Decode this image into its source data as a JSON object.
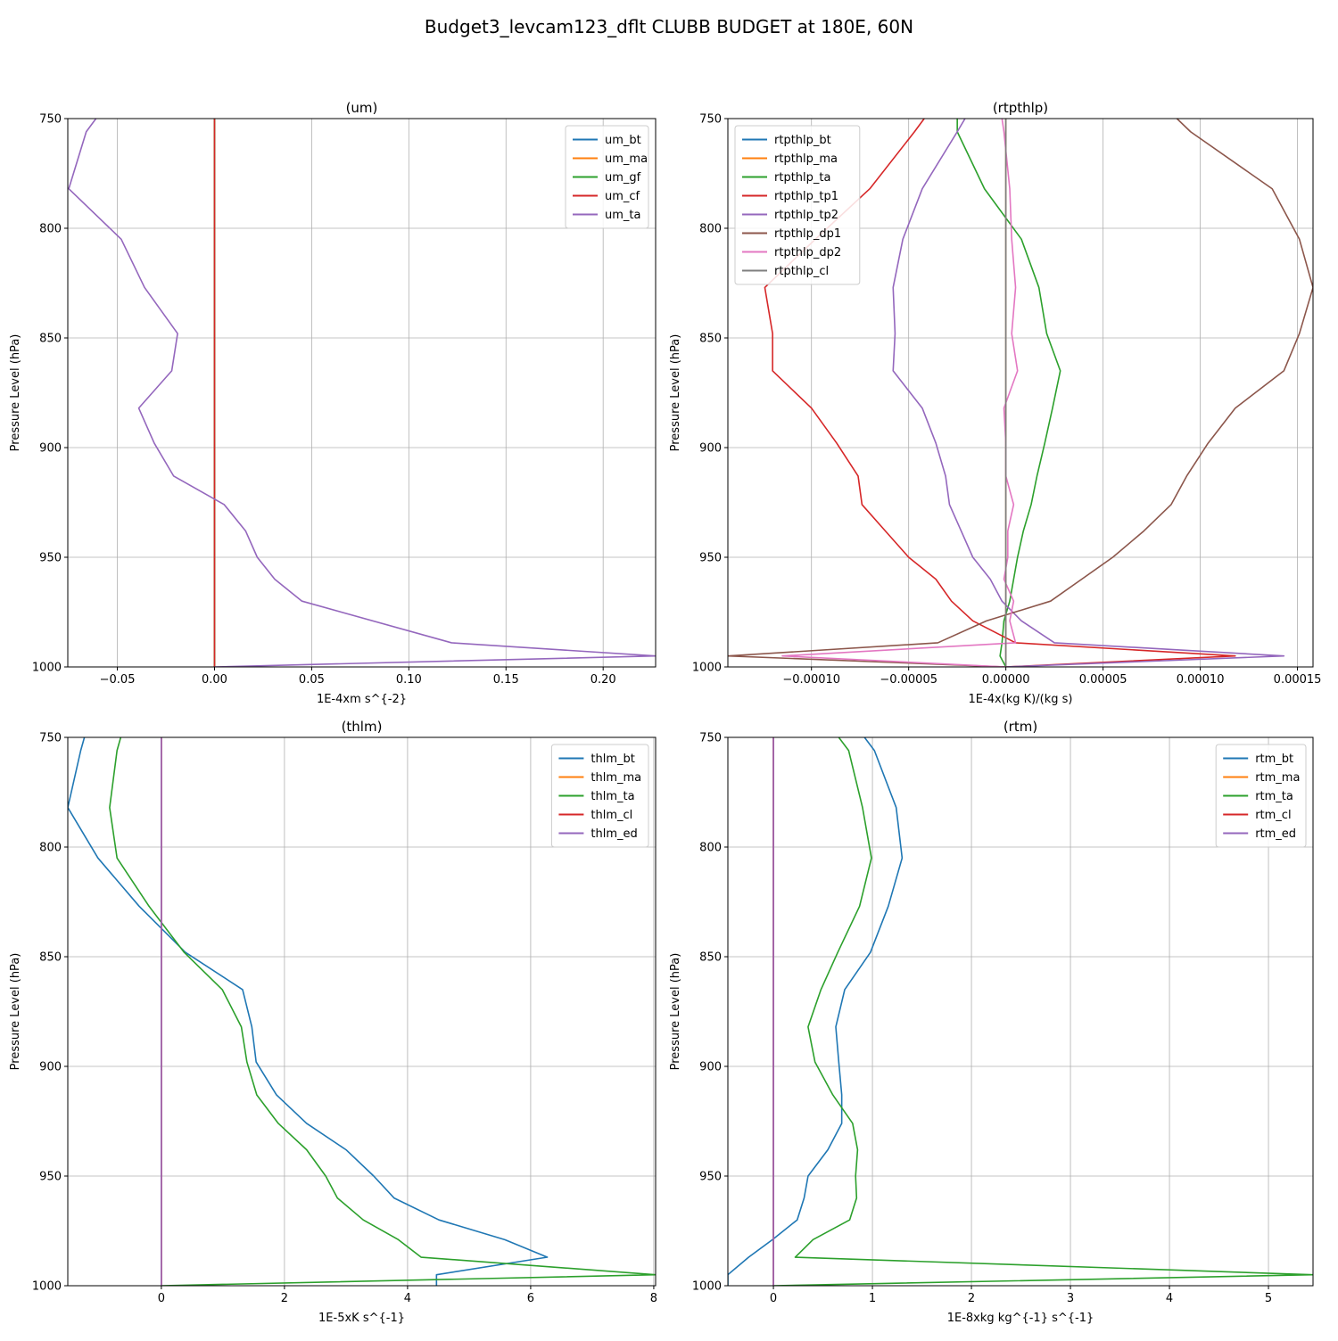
{
  "figure": {
    "title": "Budget3_levcam123_dflt CLUBB BUDGET at 180E, 60N"
  },
  "chart_data": [
    {
      "type": "line",
      "title": "(um)",
      "xlabel": "1E-4xm s^{-2}",
      "ylabel": "Pressure Level (hPa)",
      "xlim": [
        -0.0755,
        0.227
      ],
      "ylim": [
        1000,
        750
      ],
      "xticks": [
        {
          "value": -0.05,
          "label": "−0.05"
        },
        {
          "value": 0.0,
          "label": "0.00"
        },
        {
          "value": 0.05,
          "label": "0.05"
        },
        {
          "value": 0.1,
          "label": "0.10"
        },
        {
          "value": 0.15,
          "label": "0.15"
        },
        {
          "value": 0.2,
          "label": "0.20"
        }
      ],
      "yticks": [
        750,
        800,
        850,
        900,
        950,
        1000
      ],
      "grid": true,
      "legend_position": "top-right",
      "levels": [
        750,
        756,
        782,
        805,
        827,
        848,
        865,
        882,
        898,
        913,
        926,
        938,
        950,
        960,
        970,
        989,
        995,
        1000
      ],
      "series": [
        {
          "name": "um_bt",
          "color": "#1f77b4",
          "values": [
            0,
            0,
            0,
            0,
            0,
            0,
            0,
            0,
            0,
            0,
            0,
            0,
            0,
            0,
            0,
            0,
            0,
            0
          ]
        },
        {
          "name": "um_ma",
          "color": "#ff7f0e",
          "values": [
            0,
            0,
            0,
            0,
            0,
            0,
            0,
            0,
            0,
            0,
            0,
            0,
            0,
            0,
            0,
            0,
            0,
            0
          ]
        },
        {
          "name": "um_gf",
          "color": "#2ca02c",
          "values": [
            0,
            0,
            0,
            0,
            0,
            0,
            0,
            0,
            0,
            0,
            0,
            0,
            0,
            0,
            0,
            0,
            0,
            0
          ]
        },
        {
          "name": "um_cf",
          "color": "#d62728",
          "values": [
            0,
            0,
            0,
            0,
            0,
            0,
            0,
            0,
            0,
            0,
            0,
            0,
            0,
            0,
            0,
            0,
            0,
            0
          ]
        },
        {
          "name": "um_ta",
          "color": "#9467bd",
          "values": [
            -0.061,
            -0.066,
            -0.075,
            -0.048,
            -0.036,
            -0.019,
            -0.022,
            -0.039,
            -0.031,
            -0.021,
            0.005,
            0.016,
            0.022,
            0.031,
            0.045,
            0.122,
            0.227,
            0.0
          ]
        }
      ]
    },
    {
      "type": "line",
      "title": "(rtpthlp)",
      "xlabel": "1E-4x(kg K)/(kg s)",
      "ylabel": "Pressure Level (hPa)",
      "xlim": [
        -0.000143,
        0.000158
      ],
      "ylim": [
        1000,
        750
      ],
      "xticks": [
        {
          "value": -0.0001,
          "label": "−0.00010"
        },
        {
          "value": -5e-05,
          "label": "−0.00005"
        },
        {
          "value": 0.0,
          "label": "0.00000"
        },
        {
          "value": 5e-05,
          "label": "0.00005"
        },
        {
          "value": 0.0001,
          "label": "0.00010"
        },
        {
          "value": 0.00015,
          "label": "0.00015"
        }
      ],
      "yticks": [
        750,
        800,
        850,
        900,
        950,
        1000
      ],
      "grid": true,
      "legend_position": "top-left",
      "levels": [
        750,
        756,
        782,
        805,
        827,
        848,
        865,
        882,
        898,
        913,
        926,
        938,
        950,
        960,
        970,
        979,
        989,
        995,
        1000
      ],
      "series": [
        {
          "name": "rtpthlp_bt",
          "color": "#1f77b4",
          "values": [
            0,
            0,
            0,
            0,
            0,
            0,
            0,
            0,
            0,
            0,
            0,
            0,
            0,
            0,
            0,
            0,
            0,
            0,
            0
          ]
        },
        {
          "name": "rtpthlp_ma",
          "color": "#ff7f0e",
          "values": [
            0,
            0,
            0,
            0,
            0,
            0,
            0,
            0,
            0,
            0,
            0,
            0,
            0,
            0,
            0,
            0,
            0,
            0,
            0
          ]
        },
        {
          "name": "rtpthlp_ta",
          "color": "#2ca02c",
          "values": [
            -2.5e-05,
            -2.5e-05,
            -1.1e-05,
            8e-06,
            1.7e-05,
            2.1e-05,
            2.8e-05,
            2.4e-05,
            2e-05,
            1.6e-05,
            1.3e-05,
            9e-06,
            6e-06,
            4e-06,
            2e-06,
            -1e-06,
            -2e-06,
            -3e-06,
            0.0
          ]
        },
        {
          "name": "rtpthlp_tp1",
          "color": "#d62728",
          "values": [
            -4.2e-05,
            -4.7e-05,
            -7e-05,
            -9.8e-05,
            -0.000124,
            -0.00012,
            -0.00012,
            -0.0001,
            -8.7e-05,
            -7.6e-05,
            -7.4e-05,
            -6.2e-05,
            -5e-05,
            -3.6e-05,
            -2.8e-05,
            -1.7e-05,
            5e-06,
            0.000118,
            0.0
          ]
        },
        {
          "name": "rtpthlp_tp2",
          "color": "#9467bd",
          "values": [
            -2.1e-05,
            -2.5e-05,
            -4.3e-05,
            -5.3e-05,
            -5.8e-05,
            -5.7e-05,
            -5.8e-05,
            -4.3e-05,
            -3.6e-05,
            -3.1e-05,
            -2.9e-05,
            -2.3e-05,
            -1.7e-05,
            -8e-06,
            -2e-06,
            8e-06,
            2.5e-05,
            0.000143,
            0.0
          ]
        },
        {
          "name": "rtpthlp_dp1",
          "color": "#8c564b",
          "values": [
            8.8e-05,
            9.5e-05,
            0.000137,
            0.000151,
            0.000158,
            0.000151,
            0.000143,
            0.000118,
            0.000104,
            9.3e-05,
            8.5e-05,
            7.1e-05,
            5.5e-05,
            3.9e-05,
            2.3e-05,
            -1e-05,
            -3.5e-05,
            -0.000143,
            0.0
          ]
        },
        {
          "name": "rtpthlp_dp2",
          "color": "#e377c2",
          "values": [
            -2e-06,
            -1e-06,
            2e-06,
            3e-06,
            5e-06,
            3e-06,
            6e-06,
            -1e-06,
            0.0,
            0.0,
            4e-06,
            1e-06,
            1e-06,
            -1e-06,
            4e-06,
            2e-06,
            5e-06,
            -0.000115,
            0.0
          ]
        },
        {
          "name": "rtpthlp_cl",
          "color": "#7f7f7f",
          "values": [
            0,
            0,
            0,
            0,
            0,
            0,
            0,
            0,
            0,
            0,
            0,
            0,
            0,
            0,
            0,
            0,
            0,
            0,
            0
          ]
        }
      ]
    },
    {
      "type": "line",
      "title": "(thlm)",
      "xlabel": "1E-5xK s^{-1}",
      "ylabel": "Pressure Level (hPa)",
      "xlim": [
        -1.52,
        8.03
      ],
      "ylim": [
        1000,
        750
      ],
      "xticks": [
        {
          "value": 0,
          "label": "0"
        },
        {
          "value": 2,
          "label": "2"
        },
        {
          "value": 4,
          "label": "4"
        },
        {
          "value": 6,
          "label": "6"
        },
        {
          "value": 8,
          "label": "8"
        }
      ],
      "yticks": [
        750,
        800,
        850,
        900,
        950,
        1000
      ],
      "grid": true,
      "legend_position": "top-right",
      "levels": [
        750,
        756,
        782,
        805,
        827,
        848,
        865,
        882,
        898,
        913,
        926,
        938,
        950,
        960,
        970,
        979,
        987,
        995,
        1000
      ],
      "series": [
        {
          "name": "thlm_bt",
          "color": "#1f77b4",
          "values": [
            -1.25,
            -1.31,
            -1.52,
            -1.03,
            -0.36,
            0.39,
            1.32,
            1.47,
            1.54,
            1.87,
            2.36,
            3.0,
            3.45,
            3.78,
            4.51,
            5.58,
            6.27,
            4.47,
            4.47
          ]
        },
        {
          "name": "thlm_ma",
          "color": "#ff7f0e",
          "values": [
            0,
            0,
            0,
            0,
            0,
            0,
            0,
            0,
            0,
            0,
            0,
            0,
            0,
            0,
            0,
            0,
            0,
            0,
            0
          ]
        },
        {
          "name": "thlm_ta",
          "color": "#2ca02c",
          "values": [
            -0.66,
            -0.72,
            -0.84,
            -0.72,
            -0.2,
            0.37,
            0.99,
            1.3,
            1.39,
            1.55,
            1.9,
            2.36,
            2.67,
            2.86,
            3.28,
            3.85,
            4.22,
            8.03,
            0.0
          ]
        },
        {
          "name": "thlm_cl",
          "color": "#d62728",
          "values": [
            0,
            0,
            0,
            0,
            0,
            0,
            0,
            0,
            0,
            0,
            0,
            0,
            0,
            0,
            0,
            0,
            0,
            0,
            0
          ]
        },
        {
          "name": "thlm_ed",
          "color": "#9467bd",
          "values": [
            0,
            0,
            0,
            0,
            0,
            0,
            0,
            0,
            0,
            0,
            0,
            0,
            0,
            0,
            0,
            0,
            0,
            0,
            0
          ]
        }
      ]
    },
    {
      "type": "line",
      "title": "(rtm)",
      "xlabel": "1E-8xkg kg^{-1} s^{-1}",
      "ylabel": "Pressure Level (hPa)",
      "xlim": [
        -0.46,
        5.45
      ],
      "ylim": [
        1000,
        750
      ],
      "xticks": [
        {
          "value": 0,
          "label": "0"
        },
        {
          "value": 1,
          "label": "1"
        },
        {
          "value": 2,
          "label": "2"
        },
        {
          "value": 3,
          "label": "3"
        },
        {
          "value": 4,
          "label": "4"
        },
        {
          "value": 5,
          "label": "5"
        }
      ],
      "yticks": [
        750,
        800,
        850,
        900,
        950,
        1000
      ],
      "grid": true,
      "legend_position": "top-right",
      "levels": [
        750,
        756,
        782,
        805,
        827,
        848,
        865,
        882,
        898,
        913,
        926,
        938,
        950,
        960,
        970,
        979,
        987,
        995,
        1000
      ],
      "series": [
        {
          "name": "rtm_bt",
          "color": "#1f77b4",
          "values": [
            0.92,
            1.02,
            1.24,
            1.3,
            1.16,
            0.98,
            0.72,
            0.63,
            0.66,
            0.69,
            0.69,
            0.55,
            0.35,
            0.31,
            0.24,
            -0.01,
            -0.25,
            -0.46,
            -0.46
          ]
        },
        {
          "name": "rtm_ma",
          "color": "#ff7f0e",
          "values": [
            0,
            0,
            0,
            0,
            0,
            0,
            0,
            0,
            0,
            0,
            0,
            0,
            0,
            0,
            0,
            0,
            0,
            0,
            0
          ]
        },
        {
          "name": "rtm_ta",
          "color": "#2ca02c",
          "values": [
            0.66,
            0.76,
            0.9,
            0.99,
            0.87,
            0.65,
            0.48,
            0.35,
            0.42,
            0.6,
            0.8,
            0.85,
            0.83,
            0.84,
            0.77,
            0.4,
            0.22,
            5.45,
            0.0
          ]
        },
        {
          "name": "rtm_cl",
          "color": "#d62728",
          "values": [
            0,
            0,
            0,
            0,
            0,
            0,
            0,
            0,
            0,
            0,
            0,
            0,
            0,
            0,
            0,
            0,
            0,
            0,
            0
          ]
        },
        {
          "name": "rtm_ed",
          "color": "#9467bd",
          "values": [
            0,
            0,
            0,
            0,
            0,
            0,
            0,
            0,
            0,
            0,
            0,
            0,
            0,
            0,
            0,
            0,
            0,
            0,
            0
          ]
        }
      ]
    }
  ]
}
